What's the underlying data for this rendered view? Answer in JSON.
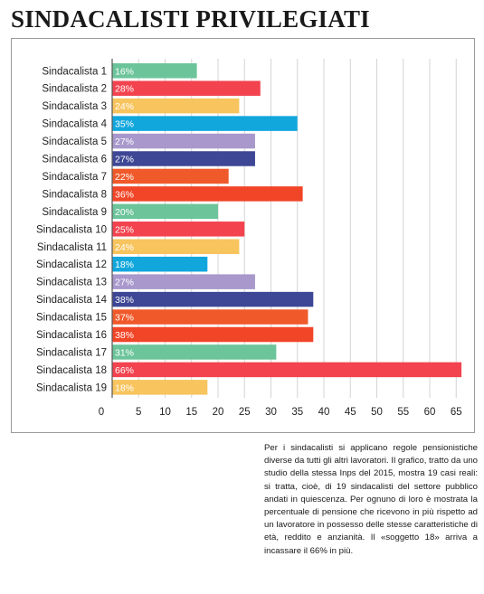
{
  "headline": "SINDACALISTI PRIVILEGIATI",
  "caption": "Per i sindacalisti si applicano regole pensionistiche diverse da tutti gli altri lavoratori. Il grafico, tratto da uno studio della stessa Inps del 2015, mostra 19 casi reali: si tratta, cioè, di 19 sindacalisti del settore pubblico andati in quiescenza. Per ognuno di loro è mostrata la percentuale di pensione che ricevono in più rispetto ad un lavoratore in possesso delle stesse caratteristiche di età, reddito e anzianità. Il «soggetto 18» arriva a incassare il 66% in più.",
  "chart_data": {
    "type": "bar",
    "orientation": "horizontal",
    "categories": [
      "Sindacalista 1",
      "Sindacalista 2",
      "Sindacalista 3",
      "Sindacalista 4",
      "Sindacalista 5",
      "Sindacalista 6",
      "Sindacalista 7",
      "Sindacalista 8",
      "Sindacalista 9",
      "Sindacalista 10",
      "Sindacalista 11",
      "Sindacalista 12",
      "Sindacalista 13",
      "Sindacalista 14",
      "Sindacalista 15",
      "Sindacalista 16",
      "Sindacalista 17",
      "Sindacalista 18",
      "Sindacalista 19"
    ],
    "values": [
      16,
      28,
      24,
      35,
      27,
      27,
      22,
      36,
      20,
      25,
      24,
      18,
      27,
      38,
      37,
      38,
      31,
      66,
      18
    ],
    "value_labels": [
      "16%",
      "28%",
      "24%",
      "35%",
      "27%",
      "27%",
      "22%",
      "36%",
      "20%",
      "25%",
      "24%",
      "18%",
      "27%",
      "38%",
      "37%",
      "38%",
      "31%",
      "66%",
      "18%"
    ],
    "colors": [
      "#6cc49a",
      "#f2434f",
      "#f7c45e",
      "#11a7dd",
      "#a898cc",
      "#3e4795",
      "#f0592a",
      "#f14527",
      "#6cc49a",
      "#f2434f",
      "#f7c45e",
      "#11a7dd",
      "#a898cc",
      "#3e4795",
      "#f0592a",
      "#f14527",
      "#6cc49a",
      "#f2434f",
      "#f7c45e"
    ],
    "xticks": [
      0,
      5,
      10,
      15,
      20,
      25,
      30,
      35,
      40,
      45,
      50,
      55,
      60,
      65
    ],
    "xlim": [
      0,
      66
    ],
    "grid": true,
    "title": "",
    "xlabel": "",
    "ylabel": ""
  }
}
